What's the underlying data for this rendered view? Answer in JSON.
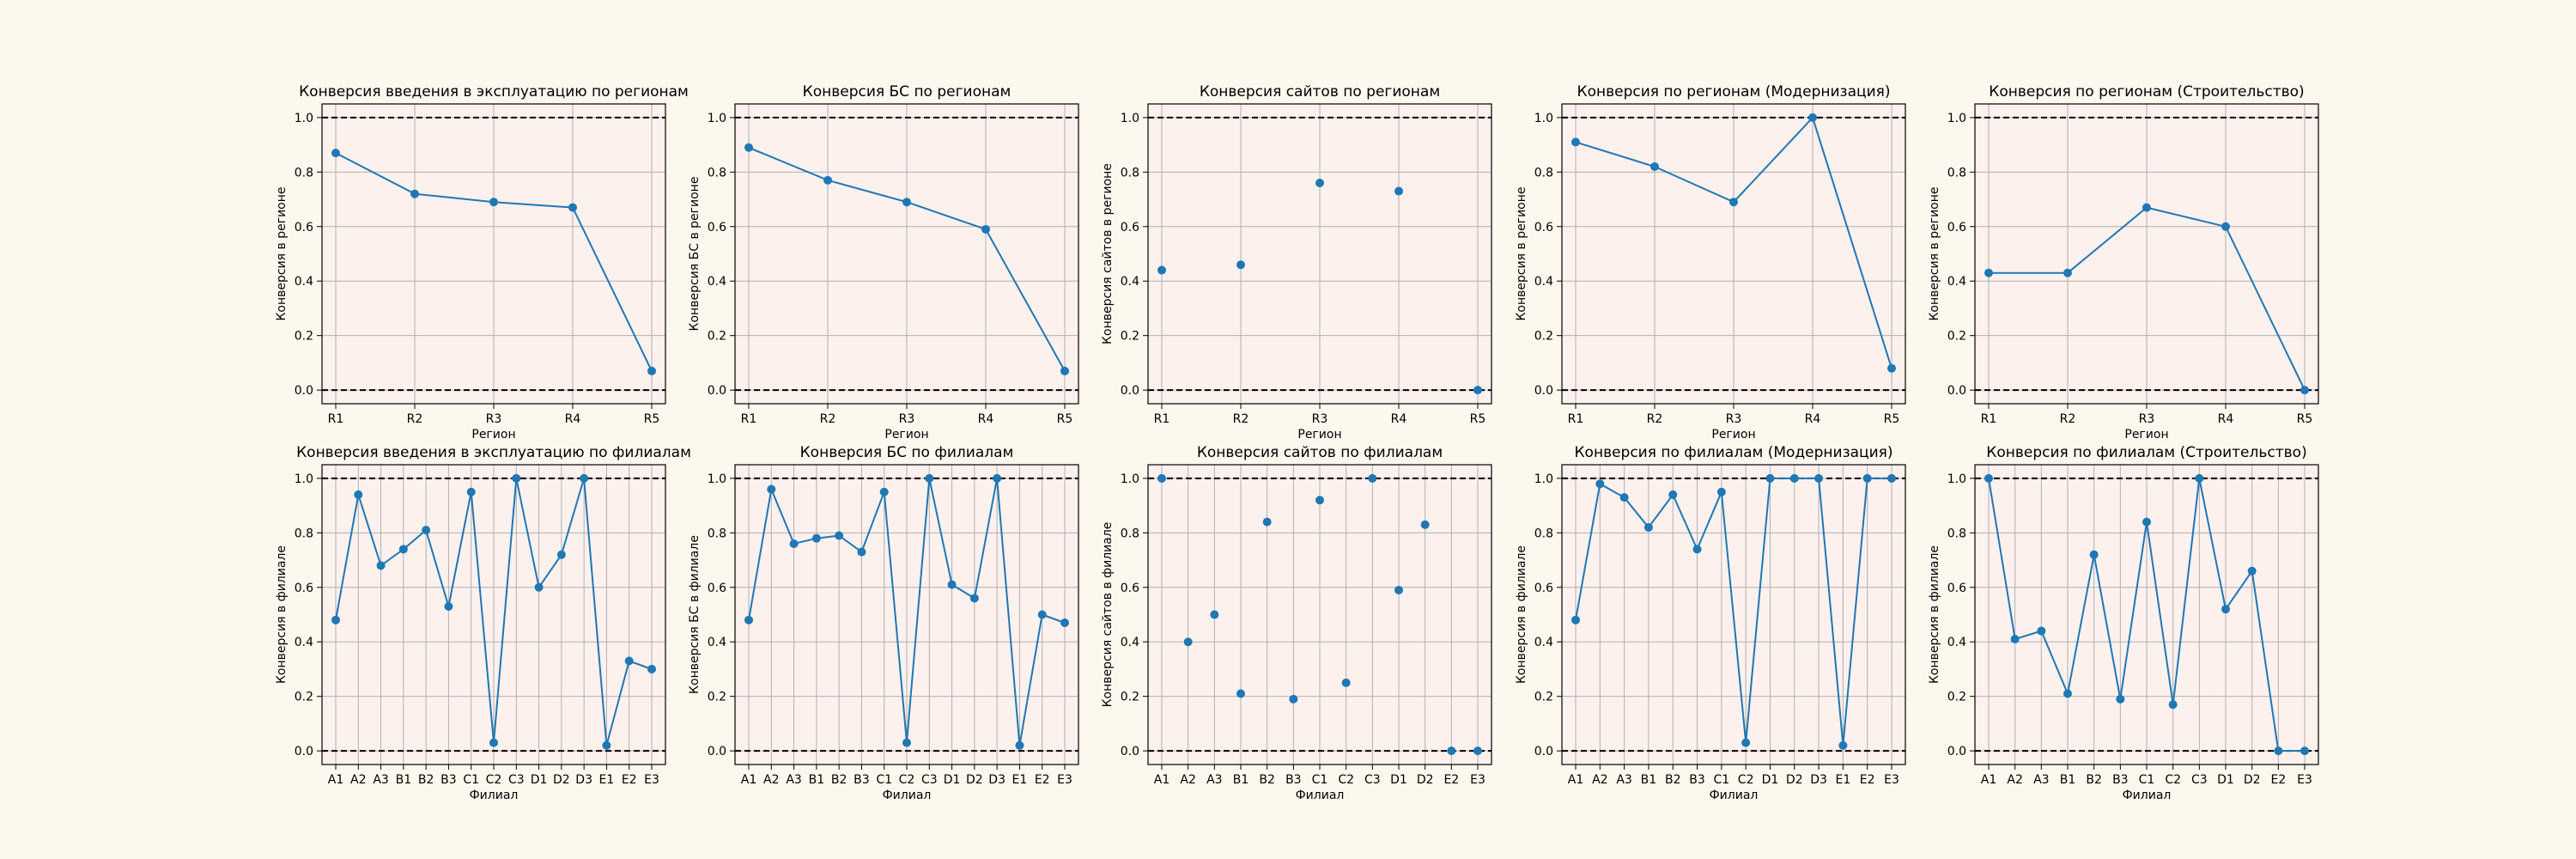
{
  "chart_data": [
    {
      "type": "line",
      "title": "Конверсия введения в эксплуатацию по регионам",
      "xlabel": "Регион",
      "ylabel": "Конверсия в регионе",
      "categories": [
        "R1",
        "R2",
        "R3",
        "R4",
        "R5"
      ],
      "values": [
        0.87,
        0.72,
        0.69,
        0.67,
        0.07
      ],
      "ylim": [
        -0.05,
        1.05
      ],
      "yticks": [
        "0.0",
        "0.2",
        "0.4",
        "0.6",
        "0.8",
        "1.0"
      ],
      "reference_lines": [
        0,
        1
      ],
      "grid": true,
      "line": true
    },
    {
      "type": "line",
      "title": "Конверсия БС по регионам",
      "xlabel": "Регион",
      "ylabel": "Конверсия БС в регионе",
      "categories": [
        "R1",
        "R2",
        "R3",
        "R4",
        "R5"
      ],
      "values": [
        0.89,
        0.77,
        0.69,
        0.59,
        0.07
      ],
      "ylim": [
        -0.05,
        1.05
      ],
      "yticks": [
        "0.0",
        "0.2",
        "0.4",
        "0.6",
        "0.8",
        "1.0"
      ],
      "reference_lines": [
        0,
        1
      ],
      "grid": true,
      "line": true
    },
    {
      "type": "scatter",
      "title": "Конверсия сайтов по регионам",
      "xlabel": "Регион",
      "ylabel": "Конверсия сайтов в регионе",
      "categories": [
        "R1",
        "R2",
        "R3",
        "R4",
        "R5"
      ],
      "values": [
        0.44,
        0.46,
        0.76,
        0.73,
        0.0
      ],
      "ylim": [
        -0.05,
        1.05
      ],
      "yticks": [
        "0.0",
        "0.2",
        "0.4",
        "0.6",
        "0.8",
        "1.0"
      ],
      "reference_lines": [
        0,
        1
      ],
      "grid": true,
      "line": false
    },
    {
      "type": "line",
      "title": "Конверсия по регионам (Модернизация)",
      "xlabel": "Регион",
      "ylabel": "Конверсия в регионе",
      "categories": [
        "R1",
        "R2",
        "R3",
        "R4",
        "R5"
      ],
      "values": [
        0.91,
        0.82,
        0.69,
        1.0,
        0.08
      ],
      "ylim": [
        -0.05,
        1.05
      ],
      "yticks": [
        "0.0",
        "0.2",
        "0.4",
        "0.6",
        "0.8",
        "1.0"
      ],
      "reference_lines": [
        0,
        1
      ],
      "grid": true,
      "line": true
    },
    {
      "type": "line",
      "title": "Конверсия по регионам (Строительство)",
      "xlabel": "Регион",
      "ylabel": "Конверсия в регионе",
      "categories": [
        "R1",
        "R2",
        "R3",
        "R4",
        "R5"
      ],
      "values": [
        0.43,
        0.43,
        0.67,
        0.6,
        0.0
      ],
      "ylim": [
        -0.05,
        1.05
      ],
      "yticks": [
        "0.0",
        "0.2",
        "0.4",
        "0.6",
        "0.8",
        "1.0"
      ],
      "reference_lines": [
        0,
        1
      ],
      "grid": true,
      "line": true
    },
    {
      "type": "line",
      "title": "Конверсия введения в эксплуатацию по филиалам",
      "xlabel": "Филиал",
      "ylabel": "Конверсия в филиале",
      "categories": [
        "A1",
        "A2",
        "A3",
        "B1",
        "B2",
        "B3",
        "C1",
        "C2",
        "C3",
        "D1",
        "D2",
        "D3",
        "E1",
        "E2",
        "E3"
      ],
      "values": [
        0.48,
        0.94,
        0.68,
        0.74,
        0.81,
        0.53,
        0.95,
        0.03,
        1.0,
        0.6,
        0.72,
        1.0,
        0.02,
        0.33,
        0.3
      ],
      "ylim": [
        -0.05,
        1.05
      ],
      "yticks": [
        "0.0",
        "0.2",
        "0.4",
        "0.6",
        "0.8",
        "1.0"
      ],
      "reference_lines": [
        0,
        1
      ],
      "grid": true,
      "line": true
    },
    {
      "type": "line",
      "title": "Конверсия БС по филиалам",
      "xlabel": "Филиал",
      "ylabel": "Конверсия БС в филиале",
      "categories": [
        "A1",
        "A2",
        "A3",
        "B1",
        "B2",
        "B3",
        "C1",
        "C2",
        "C3",
        "D1",
        "D2",
        "D3",
        "E1",
        "E2",
        "E3"
      ],
      "values": [
        0.48,
        0.96,
        0.76,
        0.78,
        0.79,
        0.73,
        0.95,
        0.03,
        1.0,
        0.61,
        0.56,
        1.0,
        0.02,
        0.5,
        0.47
      ],
      "ylim": [
        -0.05,
        1.05
      ],
      "yticks": [
        "0.0",
        "0.2",
        "0.4",
        "0.6",
        "0.8",
        "1.0"
      ],
      "reference_lines": [
        0,
        1
      ],
      "grid": true,
      "line": true
    },
    {
      "type": "scatter",
      "title": "Конверсия сайтов по филиалам",
      "xlabel": "Филиал",
      "ylabel": "Конверсия сайтов в филиале",
      "categories": [
        "A1",
        "A2",
        "A3",
        "B1",
        "B2",
        "B3",
        "C1",
        "C2",
        "C3",
        "D1",
        "D2",
        "E2",
        "E3"
      ],
      "values": [
        1.0,
        0.4,
        0.5,
        0.21,
        0.84,
        0.19,
        0.92,
        0.25,
        1.0,
        0.59,
        0.83,
        0.0,
        0.0
      ],
      "ylim": [
        -0.05,
        1.05
      ],
      "yticks": [
        "0.0",
        "0.2",
        "0.4",
        "0.6",
        "0.8",
        "1.0"
      ],
      "reference_lines": [
        0,
        1
      ],
      "grid": true,
      "line": false
    },
    {
      "type": "line",
      "title": "Конверсия по филиалам (Модернизация)",
      "xlabel": "Филиал",
      "ylabel": "Конверсия в филиале",
      "categories": [
        "A1",
        "A2",
        "A3",
        "B1",
        "B2",
        "B3",
        "C1",
        "C2",
        "D1",
        "D2",
        "D3",
        "E1",
        "E2",
        "E3"
      ],
      "values": [
        0.48,
        0.98,
        0.93,
        0.82,
        0.94,
        0.74,
        0.95,
        0.03,
        1.0,
        1.0,
        1.0,
        0.02,
        1.0,
        1.0
      ],
      "ylim": [
        -0.05,
        1.05
      ],
      "yticks": [
        "0.0",
        "0.2",
        "0.4",
        "0.6",
        "0.8",
        "1.0"
      ],
      "reference_lines": [
        0,
        1
      ],
      "grid": true,
      "line": true
    },
    {
      "type": "line",
      "title": "Конверсия по филиалам (Строительство)",
      "xlabel": "Филиал",
      "ylabel": "Конверсия в филиале",
      "categories": [
        "A1",
        "A2",
        "A3",
        "B1",
        "B2",
        "B3",
        "C1",
        "C2",
        "C3",
        "D1",
        "D2",
        "E2",
        "E3"
      ],
      "values": [
        1.0,
        0.41,
        0.44,
        0.21,
        0.72,
        0.19,
        0.84,
        0.17,
        1.0,
        0.52,
        0.66,
        0.0,
        0.0
      ],
      "ylim": [
        -0.05,
        1.05
      ],
      "yticks": [
        "0.0",
        "0.2",
        "0.4",
        "0.6",
        "0.8",
        "1.0"
      ],
      "reference_lines": [
        0,
        1
      ],
      "grid": true,
      "line": true
    }
  ],
  "colors": {
    "figure_background": "#fdf8ee",
    "plot_background": "#fdf1ee",
    "series": "#1f77b4",
    "grid": "#b0b0b0",
    "reference_line": "#000000"
  }
}
